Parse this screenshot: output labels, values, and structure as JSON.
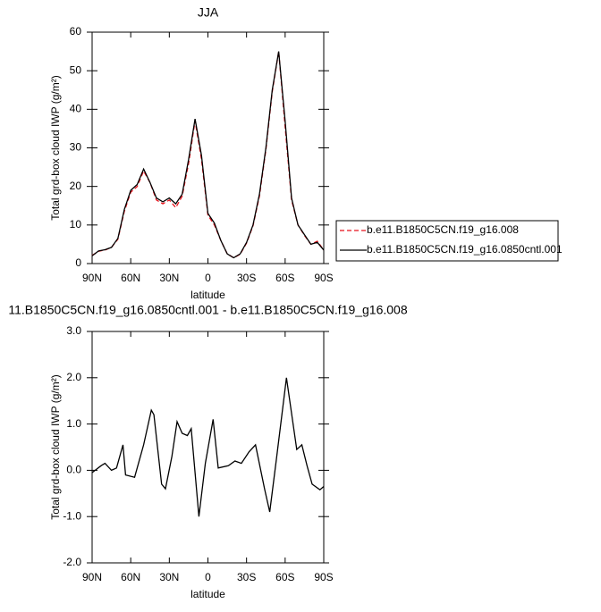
{
  "chart_data": [
    {
      "type": "line",
      "title": "JJA",
      "xlabel": "latitude",
      "ylabel": "Total grd-box cloud IWP (g/m²)",
      "x": [
        90,
        85,
        80,
        75,
        70,
        65,
        60,
        55,
        50,
        45,
        40,
        35,
        30,
        25,
        20,
        15,
        10,
        5,
        0,
        -5,
        -10,
        -15,
        -20,
        -25,
        -30,
        -35,
        -40,
        -45,
        -50,
        -55,
        -60,
        -65,
        -70,
        -75,
        -80,
        -85,
        -90
      ],
      "series": [
        {
          "name": "b.e11.B1850C5CN.f19_g16.008",
          "color": "#e8101a",
          "line_style": "dashed",
          "values": [
            2.1,
            3.2,
            3.5,
            4.2,
            6.3,
            13.5,
            18.5,
            20,
            24,
            21,
            16.5,
            15.5,
            16.5,
            14.5,
            17.5,
            26,
            37,
            27,
            12.5,
            10,
            6,
            2.5,
            1.5,
            2.4,
            5.3,
            9.8,
            17.5,
            29.5,
            44.5,
            55,
            35.5,
            16.5,
            10,
            7.3,
            5,
            5.8,
            3.5
          ]
        },
        {
          "name": "b.e11.B1850C5CN.f19_g16.0850cntl.001",
          "color": "#000000",
          "line_style": "solid",
          "values": [
            2.0,
            3.3,
            3.6,
            4.2,
            6.5,
            14,
            19,
            20.5,
            24.5,
            21,
            17,
            16,
            17,
            15.5,
            18,
            27,
            37.5,
            28,
            13,
            10.5,
            6,
            2.5,
            1.5,
            2.5,
            5.5,
            10,
            18,
            30,
            45,
            55,
            37,
            17,
            10,
            7.5,
            5,
            5.5,
            3.5
          ]
        }
      ],
      "xlim": [
        90,
        -90
      ],
      "xticks": [
        {
          "value": 90,
          "label": "90N"
        },
        {
          "value": 60,
          "label": "60N"
        },
        {
          "value": 30,
          "label": "30N"
        },
        0,
        {
          "value": -30,
          "label": "30S"
        },
        {
          "value": -60,
          "label": "60S"
        },
        {
          "value": -90,
          "label": "90S"
        }
      ],
      "ylim": [
        0,
        60
      ],
      "yticks": [
        0,
        10,
        20,
        30,
        40,
        50,
        60
      ],
      "legend": "right"
    },
    {
      "type": "line",
      "title": "11.B1850C5CN.f19_g16.0850cntl.001 - b.e11.B1850C5CN.f19_g16.008",
      "xlabel": "latitude",
      "ylabel": "Total grd-box cloud IWP (g/m²)",
      "x": [
        90,
        83,
        80,
        75,
        71,
        66,
        64,
        57,
        50,
        44,
        42,
        36,
        33,
        28,
        24,
        20,
        16,
        13,
        7,
        2,
        -4,
        -8,
        -16,
        -21,
        -26,
        -32,
        -37,
        -44,
        -48,
        -53,
        -61,
        -69,
        -73,
        -77,
        -81,
        -87,
        -90
      ],
      "series": [
        {
          "color": "#000000",
          "line_style": "solid",
          "values": [
            -0.05,
            0.1,
            0.15,
            0.0,
            0.05,
            0.55,
            -0.1,
            -0.15,
            0.55,
            1.3,
            1.2,
            -0.3,
            -0.4,
            0.3,
            1.05,
            0.8,
            0.75,
            0.9,
            -1.0,
            0.15,
            1.1,
            0.05,
            0.1,
            0.2,
            0.15,
            0.4,
            0.55,
            -0.4,
            -0.9,
            0.2,
            2.0,
            0.45,
            0.55,
            0.1,
            -0.3,
            -0.42,
            -0.35
          ]
        }
      ],
      "xlim": [
        90,
        -90
      ],
      "xticks": [
        {
          "value": 90,
          "label": "90N"
        },
        {
          "value": 60,
          "label": "60N"
        },
        {
          "value": 30,
          "label": "30N"
        },
        0,
        {
          "value": -30,
          "label": "30S"
        },
        {
          "value": -60,
          "label": "60S"
        },
        {
          "value": -90,
          "label": "90S"
        }
      ],
      "ylim": [
        -2,
        3
      ],
      "yticks": [
        {
          "value": -2,
          "label": "-2.0"
        },
        {
          "value": -1,
          "label": "-1.0"
        },
        {
          "value": 0,
          "label": "0.0"
        },
        {
          "value": 1,
          "label": "1.0"
        },
        {
          "value": 2,
          "label": "2.0"
        },
        {
          "value": 3,
          "label": "3.0"
        }
      ]
    }
  ]
}
